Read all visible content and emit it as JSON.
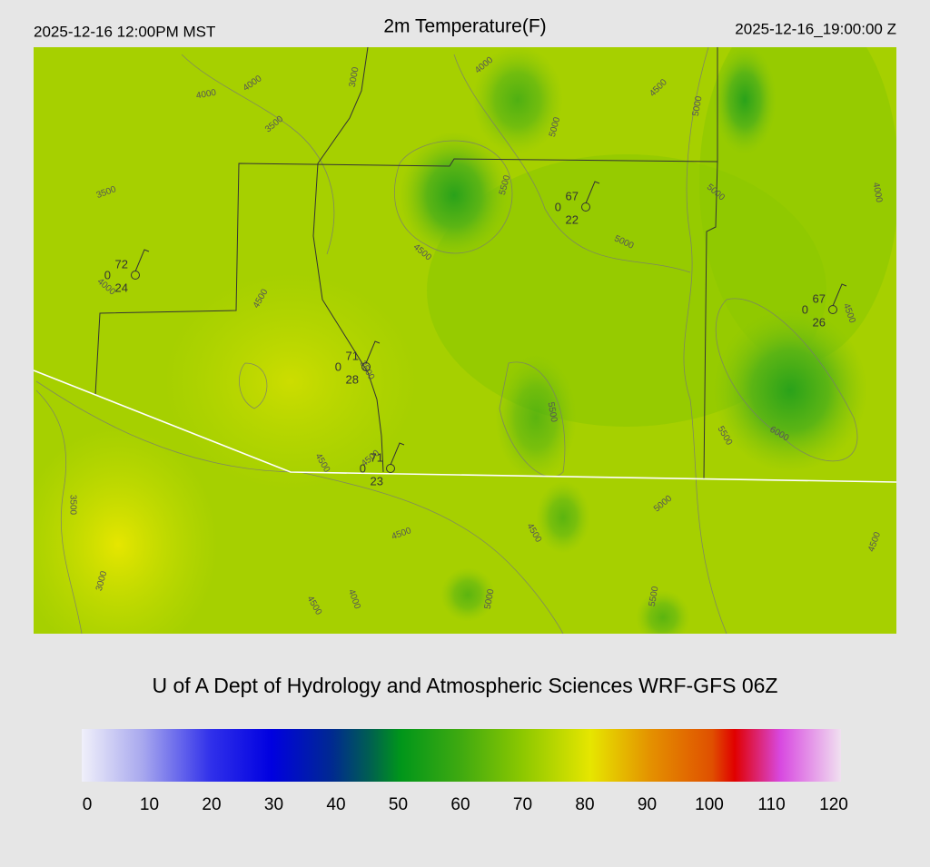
{
  "header": {
    "left": "2025-12-16 12:00PM MST",
    "title": "2m Temperature(F)",
    "right": "2025-12-16_19:00:00 Z"
  },
  "credit": "U of A Dept of Hydrology and Atmospheric Sciences WRF-GFS 06Z",
  "colorbar": {
    "ticks": [
      0,
      10,
      20,
      30,
      40,
      50,
      60,
      70,
      80,
      90,
      100,
      110,
      120
    ]
  },
  "stations": [
    {
      "top": "72",
      "left": "0",
      "bottom": "24"
    },
    {
      "top": "67",
      "left": "0",
      "bottom": "22"
    },
    {
      "top": "67",
      "left": "0",
      "bottom": "26"
    },
    {
      "top": "71",
      "left": "0",
      "bottom": "28"
    },
    {
      "top": "71",
      "left": "0",
      "bottom": "23"
    }
  ],
  "contours": [
    "4000",
    "4000",
    "3000",
    "3500",
    "3500",
    "4000",
    "5000",
    "4500",
    "5000",
    "5000",
    "4000",
    "5500",
    "4500",
    "5000",
    "4000",
    "4500",
    "4500",
    "3500",
    "5500",
    "5500",
    "6000",
    "4500",
    "4500",
    "3500",
    "5000",
    "4500",
    "4500",
    "4500",
    "3000",
    "4000",
    "4500",
    "5000",
    "5500"
  ]
}
